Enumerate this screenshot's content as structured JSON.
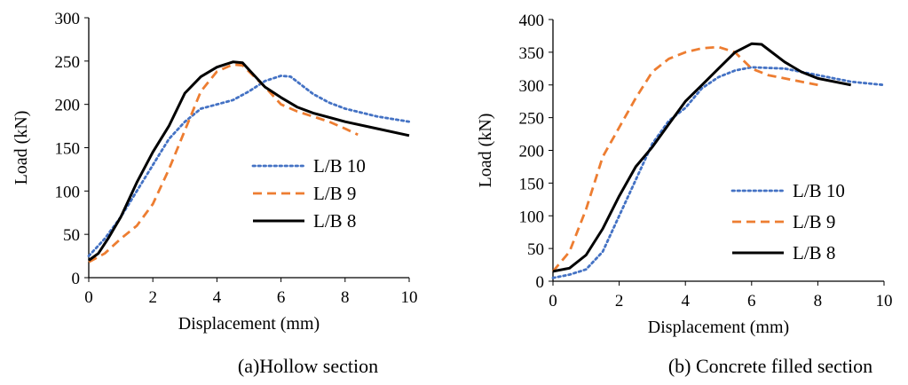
{
  "chart_data": [
    {
      "type": "line",
      "caption": "(a)Hollow section",
      "xlabel": "Displacement (mm)",
      "ylabel": "Load (kN)",
      "xlim": [
        0,
        10
      ],
      "ylim": [
        0,
        300
      ],
      "xticks": [
        0,
        2,
        4,
        6,
        8,
        10
      ],
      "yticks": [
        0,
        50,
        100,
        150,
        200,
        250,
        300
      ],
      "legend_position": "right",
      "series": [
        {
          "name": "L/B 10",
          "style": "dotted",
          "color": "#4472C4",
          "points": [
            [
              0,
              25
            ],
            [
              0.5,
              45
            ],
            [
              1,
              70
            ],
            [
              1.5,
              100
            ],
            [
              2,
              130
            ],
            [
              2.5,
              160
            ],
            [
              3,
              180
            ],
            [
              3.5,
              195
            ],
            [
              4,
              200
            ],
            [
              4.5,
              205
            ],
            [
              5,
              215
            ],
            [
              5.5,
              227
            ],
            [
              6,
              233
            ],
            [
              6.3,
              232
            ],
            [
              7,
              212
            ],
            [
              7.5,
              202
            ],
            [
              8,
              195
            ],
            [
              9,
              186
            ],
            [
              10,
              180
            ]
          ]
        },
        {
          "name": "L/B 9",
          "style": "dashed",
          "color": "#ED7D31",
          "points": [
            [
              0,
              18
            ],
            [
              0.5,
              28
            ],
            [
              1,
              45
            ],
            [
              1.5,
              60
            ],
            [
              2,
              85
            ],
            [
              2.5,
              125
            ],
            [
              3,
              170
            ],
            [
              3.5,
              215
            ],
            [
              4,
              238
            ],
            [
              4.5,
              246
            ],
            [
              4.8,
              245
            ],
            [
              5.5,
              220
            ],
            [
              6,
              200
            ],
            [
              6.5,
              192
            ],
            [
              7,
              186
            ],
            [
              7.5,
              180
            ],
            [
              8,
              172
            ],
            [
              8.4,
              165
            ]
          ]
        },
        {
          "name": "L/B 8",
          "style": "solid",
          "color": "#000000",
          "points": [
            [
              0,
              20
            ],
            [
              0.3,
              28
            ],
            [
              0.6,
              45
            ],
            [
              1,
              70
            ],
            [
              1.5,
              110
            ],
            [
              2,
              145
            ],
            [
              2.5,
              175
            ],
            [
              3,
              213
            ],
            [
              3.5,
              232
            ],
            [
              4,
              243
            ],
            [
              4.5,
              249
            ],
            [
              4.8,
              248
            ],
            [
              5,
              240
            ],
            [
              5.5,
              220
            ],
            [
              6,
              208
            ],
            [
              6.5,
              197
            ],
            [
              7,
              190
            ],
            [
              8,
              180
            ],
            [
              9,
              172
            ],
            [
              10,
              164
            ]
          ]
        }
      ]
    },
    {
      "type": "line",
      "caption": "(b) Concrete filled section",
      "xlabel": "Displacement (mm)",
      "ylabel": "Load (kN)",
      "xlim": [
        0,
        10
      ],
      "ylim": [
        0,
        400
      ],
      "xticks": [
        0,
        2,
        4,
        6,
        8,
        10
      ],
      "yticks": [
        0,
        50,
        100,
        150,
        200,
        250,
        300,
        350,
        400
      ],
      "legend_position": "bottom-right",
      "series": [
        {
          "name": "L/B 10",
          "style": "dotted",
          "color": "#4472C4",
          "points": [
            [
              0,
              5
            ],
            [
              0.5,
              10
            ],
            [
              1,
              18
            ],
            [
              1.5,
              45
            ],
            [
              2,
              100
            ],
            [
              2.5,
              155
            ],
            [
              3,
              210
            ],
            [
              3.5,
              245
            ],
            [
              4,
              265
            ],
            [
              4.5,
              295
            ],
            [
              5,
              312
            ],
            [
              5.5,
              322
            ],
            [
              6,
              327
            ],
            [
              7,
              325
            ],
            [
              8,
              315
            ],
            [
              9,
              305
            ],
            [
              10,
              300
            ]
          ]
        },
        {
          "name": "L/B 9",
          "style": "dashed",
          "color": "#ED7D31",
          "points": [
            [
              0,
              15
            ],
            [
              0.5,
              45
            ],
            [
              1,
              110
            ],
            [
              1.5,
              190
            ],
            [
              2,
              235
            ],
            [
              2.5,
              280
            ],
            [
              3,
              320
            ],
            [
              3.5,
              340
            ],
            [
              4,
              350
            ],
            [
              4.5,
              356
            ],
            [
              5,
              358
            ],
            [
              5.5,
              350
            ],
            [
              6,
              325
            ],
            [
              6.5,
              315
            ],
            [
              7,
              310
            ],
            [
              8,
              300
            ]
          ]
        },
        {
          "name": "L/B 8",
          "style": "solid",
          "color": "#000000",
          "points": [
            [
              0,
              15
            ],
            [
              0.5,
              20
            ],
            [
              1,
              40
            ],
            [
              1.5,
              80
            ],
            [
              2,
              130
            ],
            [
              2.5,
              175
            ],
            [
              3,
              205
            ],
            [
              3.5,
              240
            ],
            [
              4,
              275
            ],
            [
              4.5,
              300
            ],
            [
              5,
              325
            ],
            [
              5.5,
              350
            ],
            [
              6,
              363
            ],
            [
              6.3,
              362
            ],
            [
              7,
              335
            ],
            [
              7.5,
              320
            ],
            [
              8,
              310
            ],
            [
              9,
              300
            ]
          ]
        }
      ]
    }
  ]
}
